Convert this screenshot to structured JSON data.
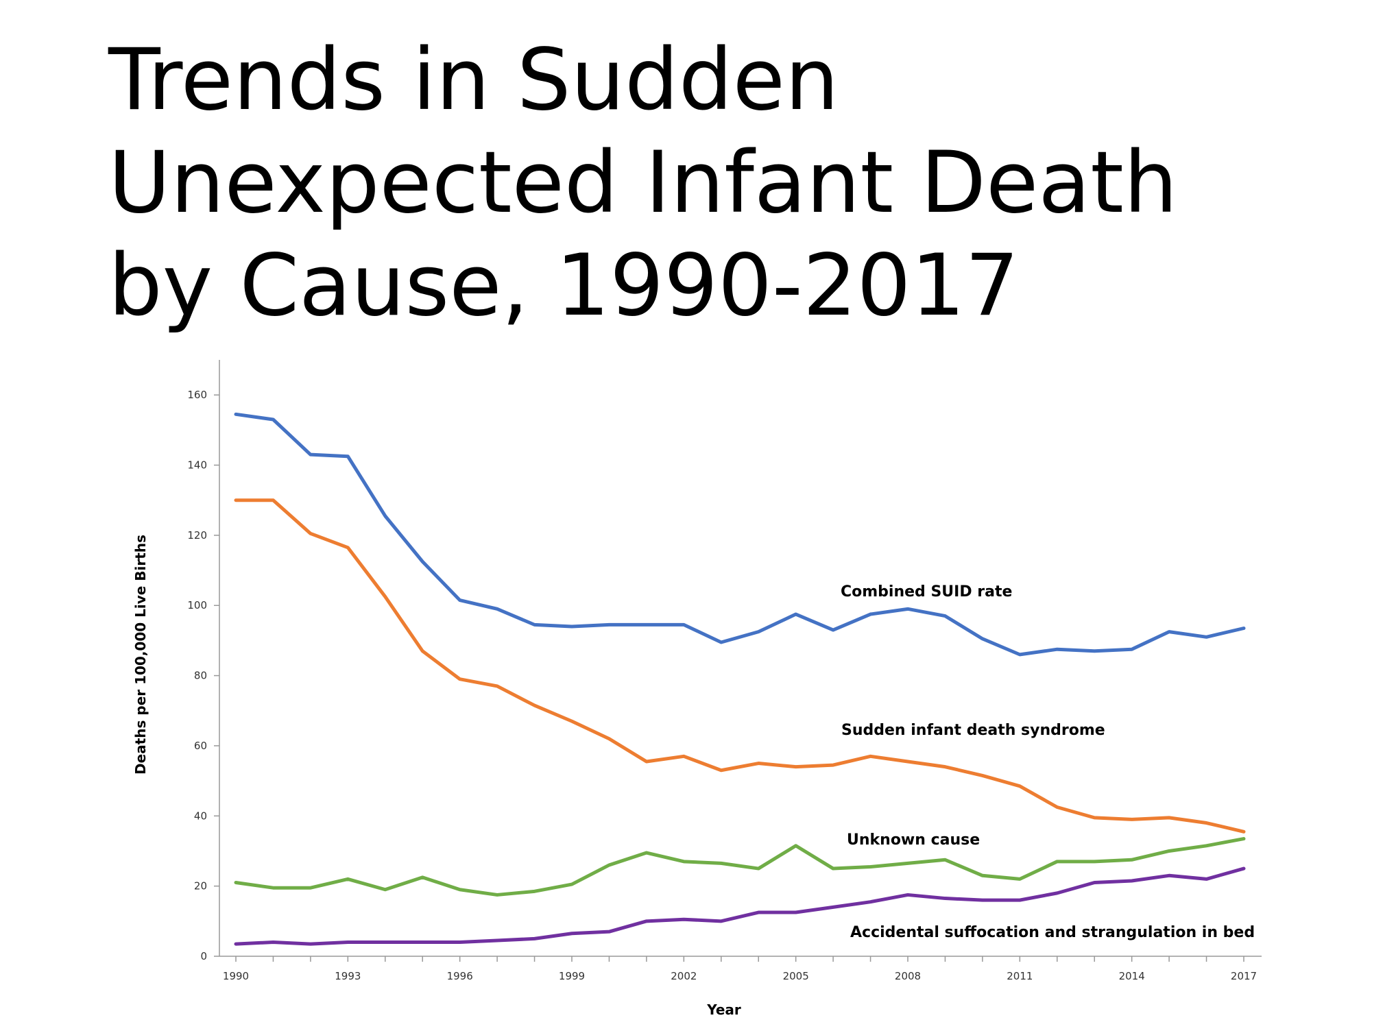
{
  "title": "Trends in Sudden Unexpected Infant Death by Cause, 1990-2017",
  "chart_data": {
    "type": "line",
    "xlabel": "Year",
    "ylabel": "Deaths per 100,000 Live Births",
    "xlim": [
      1990,
      2017
    ],
    "ylim": [
      0,
      170
    ],
    "yticks": [
      0,
      20,
      40,
      60,
      80,
      100,
      120,
      140,
      160
    ],
    "xticks": [
      1990,
      1993,
      1996,
      1999,
      2002,
      2005,
      2008,
      2011,
      2014,
      2017
    ],
    "grid": false,
    "x": [
      1990,
      1991,
      1992,
      1993,
      1994,
      1995,
      1996,
      1997,
      1998,
      1999,
      2000,
      2001,
      2002,
      2003,
      2004,
      2005,
      2006,
      2007,
      2008,
      2009,
      2010,
      2011,
      2012,
      2013,
      2014,
      2015,
      2016,
      2017
    ],
    "series": [
      {
        "name": "Combined SUID rate",
        "color": "#4472C4",
        "values": [
          154.5,
          153,
          143,
          142.5,
          125.5,
          112.5,
          101.5,
          99,
          94.5,
          94,
          94.5,
          94.5,
          94.5,
          89.5,
          92.5,
          97.5,
          93,
          97.5,
          99,
          97,
          90.5,
          86,
          87.5,
          87,
          87.5,
          92.5,
          91,
          93.5
        ]
      },
      {
        "name": "Sudden infant death syndrome",
        "color": "#ED7D31",
        "values": [
          130,
          130,
          120.5,
          116.5,
          102.5,
          87,
          79,
          77,
          71.5,
          67,
          62,
          55.5,
          57,
          53,
          55,
          54,
          54.5,
          57,
          55.5,
          54,
          51.5,
          48.5,
          42.5,
          39.5,
          39,
          39.5,
          38,
          35.5
        ]
      },
      {
        "name": "Unknown cause",
        "color": "#70AD47",
        "values": [
          21,
          19.5,
          19.5,
          22,
          19,
          22.5,
          19,
          17.5,
          18.5,
          20.5,
          26,
          29.5,
          27,
          26.5,
          25,
          31.5,
          25,
          25.5,
          26.5,
          27.5,
          23,
          22,
          27,
          27,
          27.5,
          30,
          31.5,
          33.5
        ]
      },
      {
        "name": "Accidental suffocation and strangulation in bed",
        "color": "#7030A0",
        "values": [
          3.5,
          4,
          3.5,
          4,
          4,
          4,
          4,
          4.5,
          5,
          6.5,
          7,
          10,
          10.5,
          10,
          12.5,
          12.5,
          14,
          15.5,
          17.5,
          16.5,
          16,
          16,
          18,
          21,
          21.5,
          23,
          22,
          25
        ]
      }
    ]
  }
}
